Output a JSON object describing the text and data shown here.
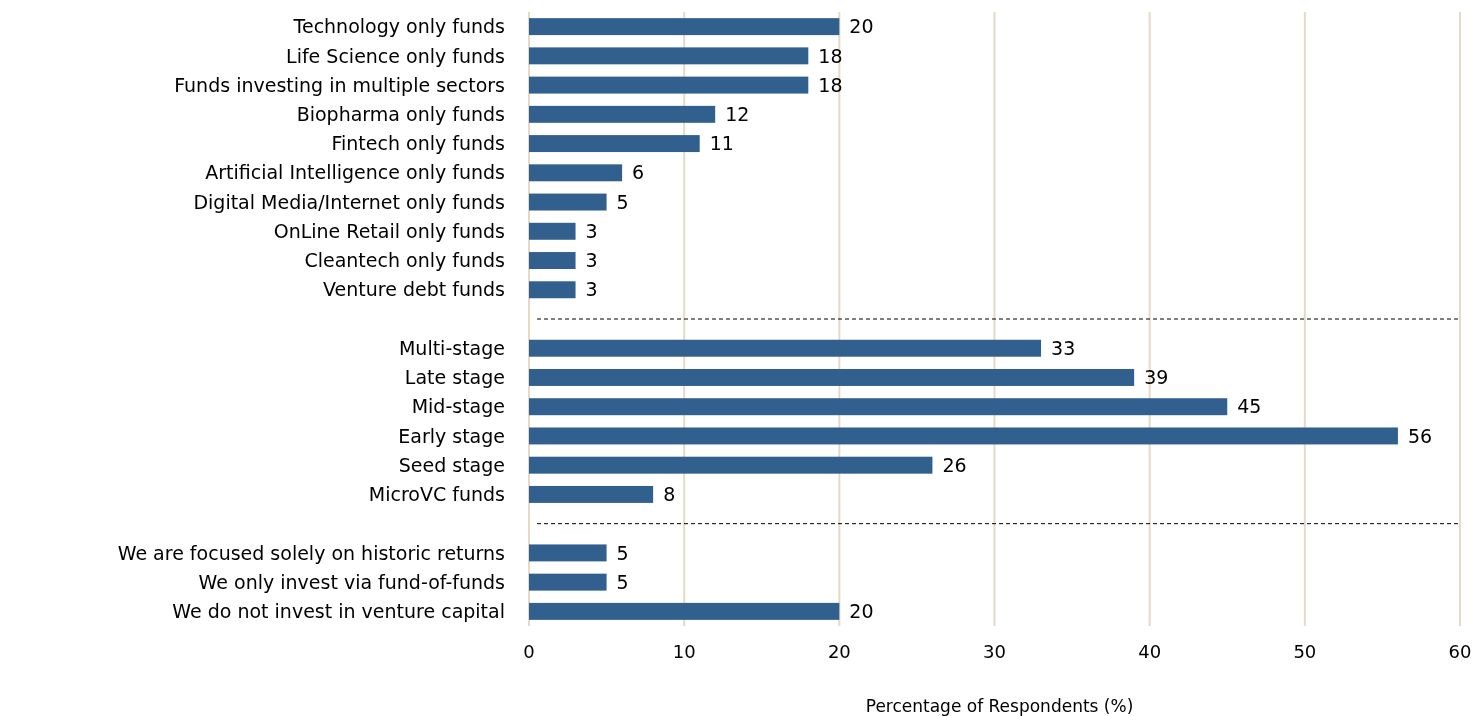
{
  "chart_data": {
    "type": "bar",
    "orientation": "horizontal",
    "xlabel": "Percentage of Respondents (%)",
    "categories": [
      "Technology only funds",
      "Life Science only funds",
      "Funds investing in multiple sectors",
      "Biopharma only funds",
      "Fintech only funds",
      "Artificial Intelligence only funds",
      "Digital Media/Internet only funds",
      "OnLine Retail only funds",
      "Cleantech only funds",
      "Venture debt funds",
      null,
      "Multi-stage",
      "Late stage",
      "Mid-stage",
      "Early stage",
      "Seed stage",
      "MicroVC funds",
      null,
      "We are focused solely on historic returns",
      "We only invest via fund-of-funds",
      "We do not invest in venture capital"
    ],
    "values": [
      20,
      18,
      18,
      12,
      11,
      6,
      5,
      3,
      3,
      3,
      null,
      33,
      39,
      45,
      56,
      26,
      8,
      null,
      5,
      5,
      20
    ],
    "color": "#31608f",
    "xlim": [
      0,
      60
    ],
    "xticks": [
      0,
      10,
      20,
      30,
      40,
      50,
      60
    ],
    "grid": "x",
    "data_labels": true
  }
}
